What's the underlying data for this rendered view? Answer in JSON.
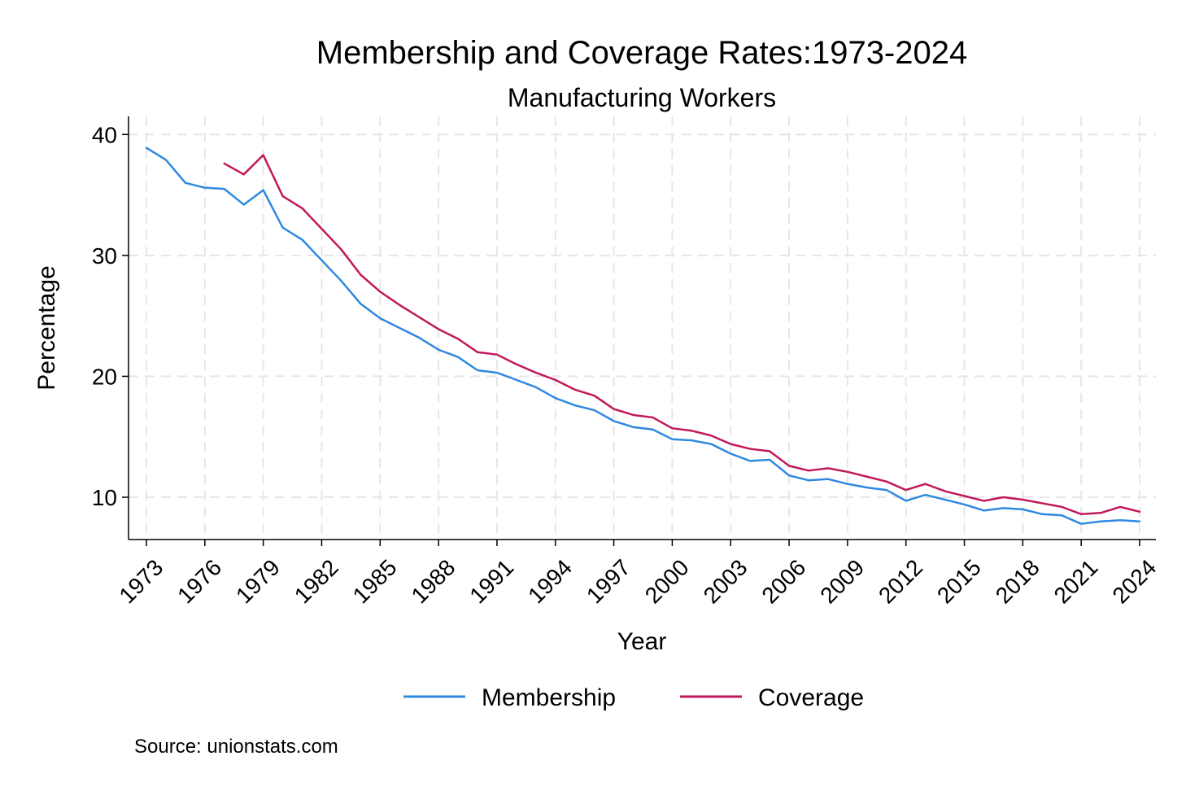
{
  "chart_data": {
    "type": "line",
    "title": "Membership and Coverage Rates:1973-2024",
    "subtitle": "Manufacturing Workers",
    "xlabel": "Year",
    "ylabel": "Percentage",
    "source": "Source: unionstats.com",
    "xlim": [
      1973,
      2024
    ],
    "ylim": [
      6.5,
      41.5
    ],
    "x_ticks": [
      1973,
      1976,
      1979,
      1982,
      1985,
      1988,
      1991,
      1994,
      1997,
      2000,
      2003,
      2006,
      2009,
      2012,
      2015,
      2018,
      2021,
      2024
    ],
    "y_ticks": [
      10,
      20,
      30,
      40
    ],
    "grid": true,
    "legend_position": "bottom",
    "series": [
      {
        "name": "Membership",
        "color": "#2f89e0",
        "x": [
          1973,
          1974,
          1975,
          1976,
          1977,
          1978,
          1979,
          1980,
          1981,
          1982,
          1983,
          1984,
          1985,
          1986,
          1987,
          1988,
          1989,
          1990,
          1991,
          1992,
          1993,
          1994,
          1995,
          1996,
          1997,
          1998,
          1999,
          2000,
          2001,
          2002,
          2003,
          2004,
          2005,
          2006,
          2007,
          2008,
          2009,
          2010,
          2011,
          2012,
          2013,
          2014,
          2015,
          2016,
          2017,
          2018,
          2019,
          2020,
          2021,
          2022,
          2023,
          2024
        ],
        "values": [
          38.9,
          37.9,
          36.0,
          35.6,
          35.5,
          34.2,
          35.4,
          32.3,
          31.3,
          29.6,
          27.9,
          26.0,
          24.8,
          24.0,
          23.2,
          22.2,
          21.6,
          20.5,
          20.3,
          19.7,
          19.1,
          18.2,
          17.6,
          17.2,
          16.3,
          15.8,
          15.6,
          14.8,
          14.7,
          14.4,
          13.6,
          13.0,
          13.1,
          11.8,
          11.4,
          11.5,
          11.1,
          10.8,
          10.6,
          9.7,
          10.2,
          9.8,
          9.4,
          8.9,
          9.1,
          9.0,
          8.6,
          8.5,
          7.8,
          8.0,
          8.1,
          8.0
        ]
      },
      {
        "name": "Coverage",
        "color": "#c2185b",
        "x": [
          1977,
          1978,
          1979,
          1980,
          1981,
          1982,
          1983,
          1984,
          1985,
          1986,
          1987,
          1988,
          1989,
          1990,
          1991,
          1992,
          1993,
          1994,
          1995,
          1996,
          1997,
          1998,
          1999,
          2000,
          2001,
          2002,
          2003,
          2004,
          2005,
          2006,
          2007,
          2008,
          2009,
          2010,
          2011,
          2012,
          2013,
          2014,
          2015,
          2016,
          2017,
          2018,
          2019,
          2020,
          2021,
          2022,
          2023,
          2024
        ],
        "values": [
          37.6,
          36.7,
          38.3,
          34.9,
          33.9,
          32.2,
          30.5,
          28.4,
          27.0,
          25.9,
          24.9,
          23.9,
          23.1,
          22.0,
          21.8,
          21.0,
          20.3,
          19.7,
          18.9,
          18.4,
          17.3,
          16.8,
          16.6,
          15.7,
          15.5,
          15.1,
          14.4,
          14.0,
          13.8,
          12.6,
          12.2,
          12.4,
          12.1,
          11.7,
          11.3,
          10.6,
          11.1,
          10.5,
          10.1,
          9.7,
          10.0,
          9.8,
          9.5,
          9.2,
          8.6,
          8.7,
          9.2,
          8.8
        ]
      }
    ]
  }
}
